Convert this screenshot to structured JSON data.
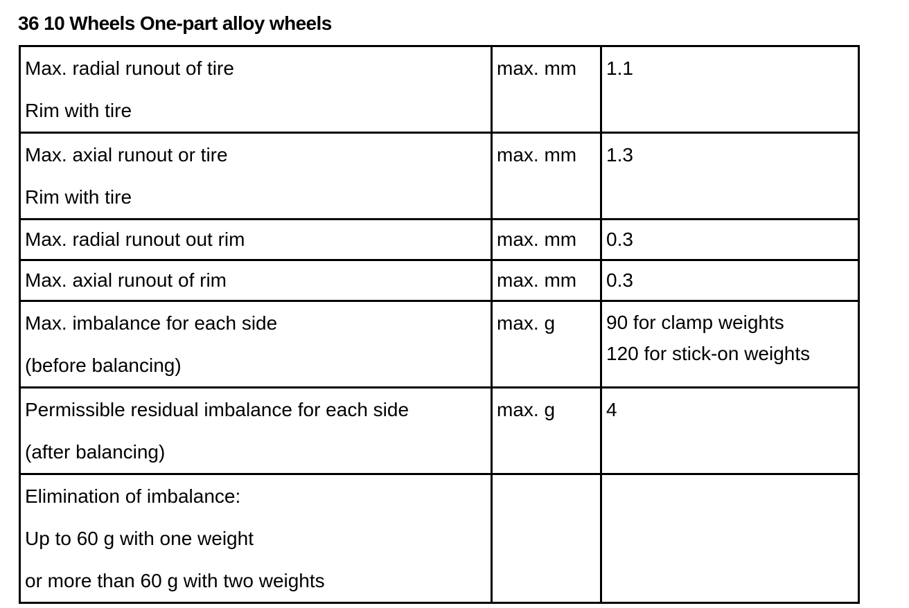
{
  "title": "36 10 Wheels One-part alloy wheels",
  "rows": [
    {
      "description": [
        "Max. radial runout of tire",
        "Rim with tire"
      ],
      "unit": "max. mm",
      "value": [
        "1.1"
      ]
    },
    {
      "description": [
        "Max. axial runout or tire",
        "Rim with tire"
      ],
      "unit": "max. mm",
      "value": [
        "1.3"
      ]
    },
    {
      "description": [
        "Max. radial runout out rim"
      ],
      "unit": "max. mm",
      "value": [
        "0.3"
      ]
    },
    {
      "description": [
        "Max. axial runout of rim"
      ],
      "unit": "max. mm",
      "value": [
        "0.3"
      ]
    },
    {
      "description": [
        "Max. imbalance for each side",
        "(before balancing)"
      ],
      "unit": "max. g",
      "value": [
        "90 for clamp weights",
        "120 for stick-on weights"
      ]
    },
    {
      "description": [
        "Permissible residual imbalance for each side",
        "(after balancing)"
      ],
      "unit": "max. g",
      "value": [
        "4"
      ]
    },
    {
      "description": [
        "Elimination of imbalance:",
        "Up to 60 g with one weight",
        "or more than 60 g with two weights"
      ],
      "unit": "",
      "value": []
    }
  ]
}
